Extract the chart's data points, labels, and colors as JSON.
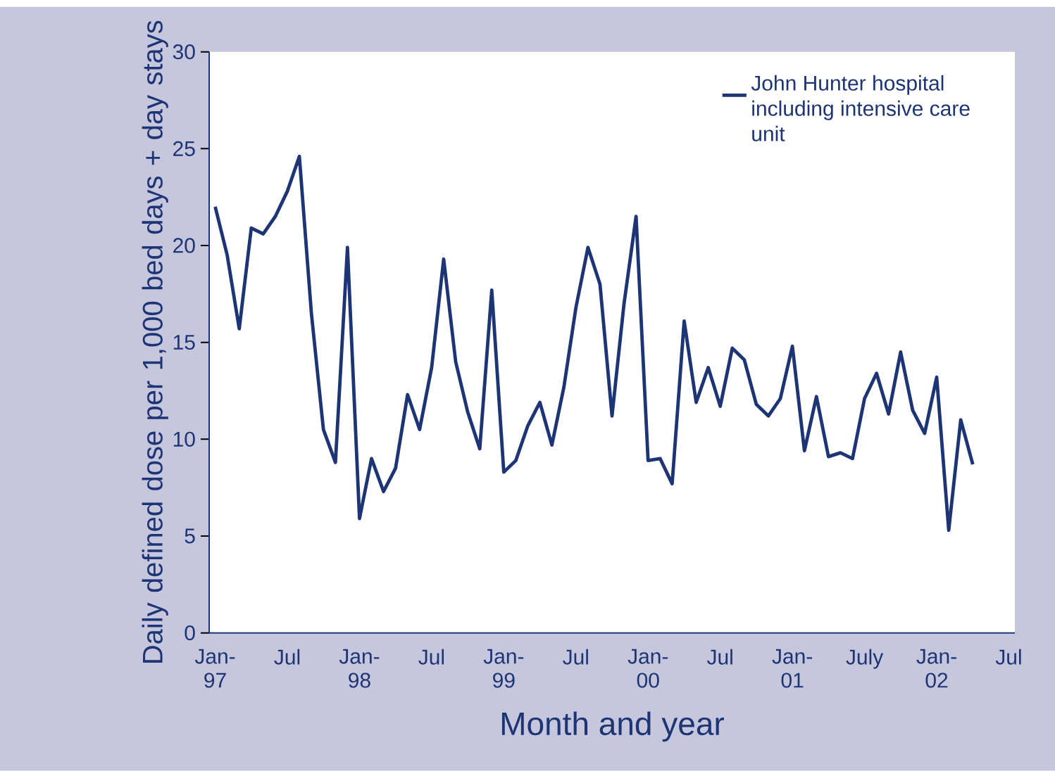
{
  "chart_data": {
    "type": "line",
    "xlabel": "Month and year",
    "ylabel": "Daily defined dose per 1,000 bed days + day stays",
    "categories": [
      "Jan-97",
      null,
      null,
      null,
      null,
      null,
      "Jul",
      null,
      null,
      null,
      null,
      null,
      "Jan-98",
      null,
      null,
      null,
      null,
      null,
      "Jul",
      null,
      null,
      null,
      null,
      null,
      "Jan-99",
      null,
      null,
      null,
      null,
      null,
      "Jul",
      null,
      null,
      null,
      null,
      null,
      "Jan-00",
      null,
      null,
      null,
      null,
      null,
      "Jul",
      null,
      null,
      null,
      null,
      null,
      "Jan-01",
      null,
      null,
      null,
      null,
      null,
      "July",
      null,
      null,
      null,
      null,
      null,
      "Jan-02",
      null,
      null,
      null,
      null,
      null,
      "Jul"
    ],
    "series": [
      {
        "name": "John Hunter hospital including intensive care unit",
        "color": "#1e3575",
        "values": [
          22.0,
          19.5,
          15.7,
          20.9,
          20.6,
          21.5,
          22.8,
          24.6,
          16.5,
          10.5,
          8.8,
          19.9,
          5.9,
          9.0,
          7.3,
          8.5,
          12.3,
          10.5,
          13.7,
          19.3,
          14.0,
          11.4,
          9.5,
          17.7,
          8.3,
          8.9,
          10.7,
          11.9,
          9.7,
          12.7,
          16.8,
          19.9,
          18.0,
          11.2,
          17.0,
          21.5,
          8.9,
          9.0,
          7.7,
          16.1,
          11.9,
          13.7,
          11.7,
          14.7,
          14.1,
          11.8,
          11.2,
          12.1,
          14.8,
          9.4,
          12.2,
          9.1,
          9.3,
          9.0,
          12.1,
          13.4,
          11.3,
          14.5,
          11.5,
          10.3,
          13.2,
          5.3,
          11.0,
          8.7,
          null,
          null,
          null
        ]
      }
    ],
    "ylim": [
      0,
      30
    ],
    "yticks": [
      0,
      5,
      10,
      15,
      20,
      25,
      30
    ],
    "legend": "top right"
  }
}
